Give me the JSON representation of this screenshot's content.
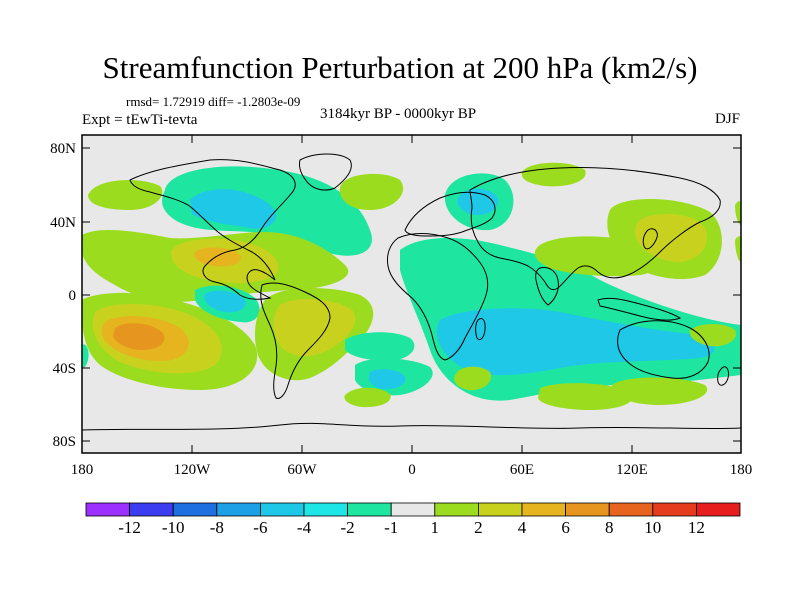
{
  "title": "Streamfunction Perturbation at 200 hPa (km2/s)",
  "stats_line": "rmsd= 1.72919 diff= -1.2803e-09",
  "experiment": "Expt = tEwTi-tevta",
  "period": "3184kyr BP - 0000kyr BP",
  "season": "DJF",
  "map": {
    "lat_ticks": [
      "80N",
      "40N",
      "0",
      "40S",
      "80S"
    ],
    "lon_ticks": [
      "180",
      "120W",
      "60W",
      "0",
      "60E",
      "120E",
      "180"
    ]
  },
  "colorbar": {
    "labels": [
      "-12",
      "-10",
      "-8",
      "-6",
      "-4",
      "-2",
      "-1",
      "1",
      "2",
      "4",
      "6",
      "8",
      "10",
      "12"
    ],
    "colors": [
      "#9b30ff",
      "#3c3cf0",
      "#1e6fe0",
      "#1ea0e6",
      "#1ec8e6",
      "#1ee6e6",
      "#1ee6a0",
      "#e8e8e8",
      "#9bdc1e",
      "#c8d21e",
      "#e6b41e",
      "#e6961e",
      "#e6641e",
      "#e63c1e",
      "#e61e1e"
    ]
  },
  "colors": {
    "background": "#ffffff",
    "map_neutral": "#e8e8e8",
    "coastline": "#000000"
  }
}
